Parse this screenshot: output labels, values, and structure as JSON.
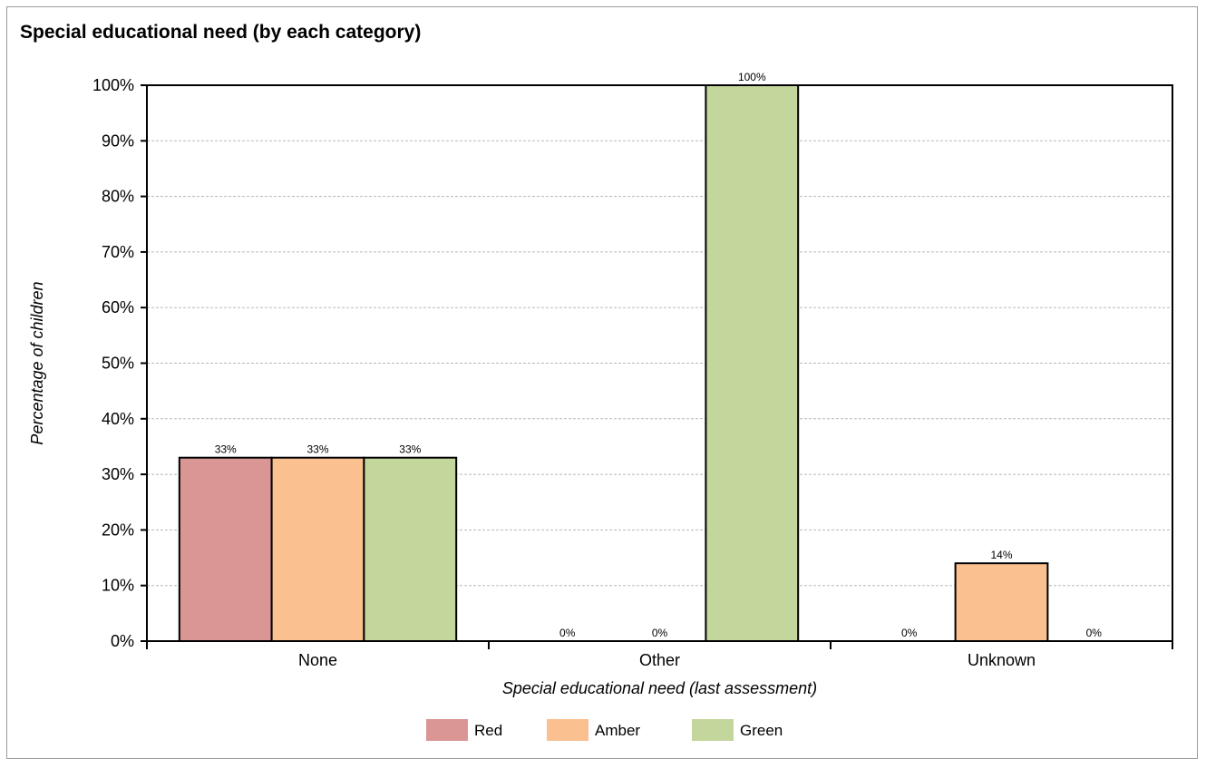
{
  "chart_data": {
    "type": "bar",
    "title": "Special educational need (by each category)",
    "xlabel": "Special educational need (last assessment)",
    "ylabel": "Percentage of children",
    "categories": [
      "None",
      "Other",
      "Unknown"
    ],
    "series": [
      {
        "name": "Red",
        "color": "#d99694",
        "values": [
          33,
          0,
          0
        ],
        "labels": [
          "33%",
          "0%",
          "0%"
        ]
      },
      {
        "name": "Amber",
        "color": "#fac090",
        "values": [
          33,
          0,
          14
        ],
        "labels": [
          "33%",
          "0%",
          "14%"
        ]
      },
      {
        "name": "Green",
        "color": "#c3d69b",
        "values": [
          33,
          100,
          0
        ],
        "labels": [
          "33%",
          "100%",
          "0%"
        ]
      }
    ],
    "ylim": [
      0,
      100
    ],
    "yticks": [
      0,
      10,
      20,
      30,
      40,
      50,
      60,
      70,
      80,
      90,
      100
    ],
    "ytick_labels": [
      "0%",
      "10%",
      "20%",
      "30%",
      "40%",
      "50%",
      "60%",
      "70%",
      "80%",
      "90%",
      "100%"
    ],
    "grid": true,
    "legend": "bottom-center"
  }
}
